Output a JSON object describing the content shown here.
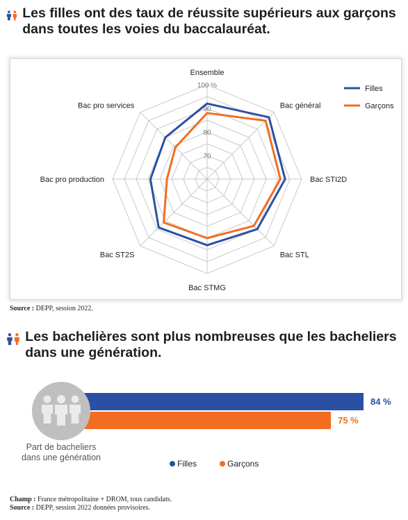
{
  "chart1": {
    "title": "Les filles ont des taux de réussite supérieurs aux garçons dans toutes les voies du baccalauréat.",
    "source_label": "Source :",
    "source_text": "DEPP, session 2022.",
    "legend": [
      "Filles",
      "Garçons"
    ]
  },
  "chart2": {
    "title": "Les bachelières sont plus nombreuses que les bacheliers dans une génération.",
    "caption": [
      "Part de bacheliers",
      "dans une génération"
    ],
    "champ_label": "Champ :",
    "champ_text": "France métropolitaine + DROM, tous candidats.",
    "source_label": "Source :",
    "source_text": "DEPP, session 2022 données provisoires.",
    "legend": [
      "Filles",
      "Garçons"
    ]
  },
  "colors": {
    "filles": "#2b50a3",
    "garcons": "#f26d21",
    "grid": "#c9c9c9",
    "icon_grey": "#c8c8c8",
    "icon_orange": "#f26d21",
    "icon_blue": "#2b50a3"
  },
  "icons": [
    "people-icon",
    "people-group-icon"
  ],
  "chart_data": [
    {
      "type": "radar",
      "categories": [
        "Ensemble",
        "Bac général",
        "Bac STI2D",
        "Bac STL",
        "Bac STMG",
        "Bac ST2S",
        "Bac pro production",
        "Bac pro services"
      ],
      "series": [
        {
          "name": "Filles",
          "values": [
            92,
            97,
            93,
            90,
            88,
            89,
            84,
            85
          ]
        },
        {
          "name": "Garçons",
          "values": [
            88,
            95,
            91,
            88,
            85,
            86,
            77,
            79
          ]
        }
      ],
      "rlim": [
        60,
        100
      ],
      "rticks": [
        70,
        80,
        90,
        100
      ],
      "rtick_labels": [
        "70",
        "80",
        "90",
        "100 %"
      ],
      "legend_position": "top-right"
    },
    {
      "type": "bar",
      "orientation": "horizontal",
      "categories": [
        "Filles",
        "Garçons"
      ],
      "values": [
        84,
        75
      ],
      "value_labels": [
        "84 %",
        "75 %"
      ],
      "xlim": [
        0,
        100
      ],
      "legend_position": "bottom"
    }
  ]
}
